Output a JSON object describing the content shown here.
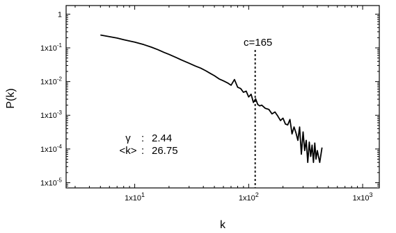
{
  "chart_data": {
    "type": "line",
    "title": "",
    "xlabel": "k",
    "ylabel": "P(k)",
    "xscale": "log",
    "yscale": "log",
    "xlim": [
      2.5,
      1400
    ],
    "ylim": [
      7e-06,
      1.8
    ],
    "grid": false,
    "x_ticks": [
      {
        "value": 10,
        "mantissa": "1x10",
        "exp": "1"
      },
      {
        "value": 100,
        "mantissa": "1x10",
        "exp": "2"
      },
      {
        "value": 1000,
        "mantissa": "1x10",
        "exp": "3"
      }
    ],
    "y_ticks": [
      {
        "value": 1,
        "mantissa": "1",
        "exp": ""
      },
      {
        "value": 0.1,
        "mantissa": "1x10",
        "exp": "-1"
      },
      {
        "value": 0.01,
        "mantissa": "1x10",
        "exp": "-2"
      },
      {
        "value": 0.001,
        "mantissa": "1x10",
        "exp": "-3"
      },
      {
        "value": 0.0001,
        "mantissa": "1x10",
        "exp": "-4"
      },
      {
        "value": 1e-05,
        "mantissa": "1x10",
        "exp": "-5"
      }
    ],
    "series": [
      {
        "x": [
          5,
          6,
          7,
          8,
          9,
          10,
          12,
          14,
          16,
          18,
          20,
          23,
          26,
          30,
          34,
          38,
          42,
          46,
          50,
          55,
          60,
          65,
          70,
          75,
          80,
          85,
          90,
          95,
          100,
          105,
          110,
          115,
          120,
          125,
          130,
          140,
          150,
          160,
          170,
          180,
          190,
          200,
          210,
          220,
          230,
          240,
          250,
          260,
          270,
          280,
          290,
          300,
          310,
          320,
          330,
          340,
          350,
          360,
          370,
          380,
          390,
          400,
          420,
          440
        ],
        "y": [
          0.24,
          0.215,
          0.195,
          0.175,
          0.16,
          0.148,
          0.125,
          0.105,
          0.088,
          0.074,
          0.064,
          0.052,
          0.043,
          0.035,
          0.029,
          0.025,
          0.021,
          0.0175,
          0.015,
          0.012,
          0.0105,
          0.0092,
          0.0078,
          0.0115,
          0.0068,
          0.0062,
          0.0048,
          0.0052,
          0.0035,
          0.0042,
          0.0024,
          0.0031,
          0.0021,
          0.0019,
          0.002,
          0.0016,
          0.0015,
          0.0011,
          0.00125,
          0.00095,
          0.0007,
          0.00082,
          0.00055,
          0.00052,
          0.00075,
          0.00028,
          0.00045,
          0.0003,
          0.00018,
          0.00045,
          7e-05,
          0.00032,
          9e-05,
          0.00018,
          4e-05,
          0.00016,
          6e-05,
          0.00013,
          4e-05,
          0.00015,
          5e-05,
          9e-05,
          4e-05,
          0.00011
        ]
      }
    ],
    "cutoff": {
      "label": "c=165",
      "x": 114
    },
    "annotations": [
      {
        "symbol": "γ",
        "sep": ":",
        "value": "2.44"
      },
      {
        "symbol": "<k>",
        "sep": ":",
        "value": "26.75"
      }
    ]
  }
}
